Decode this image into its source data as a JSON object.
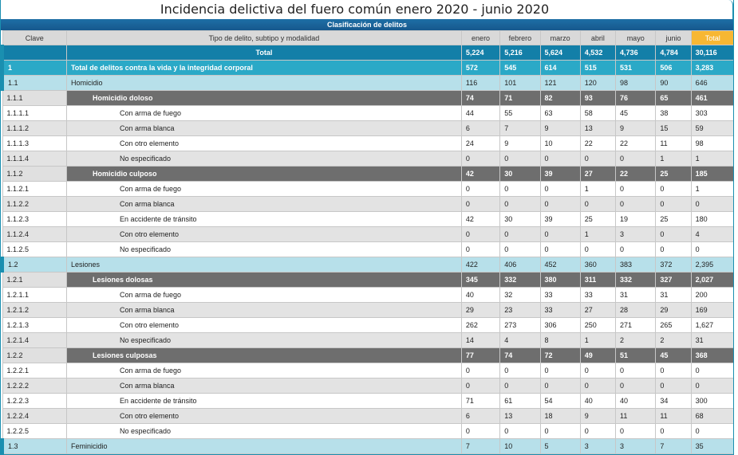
{
  "title": "Incidencia delictiva del fuero común enero 2020 - junio 2020",
  "clasificacion": "Clasificación de delitos",
  "headers": {
    "clave": "Clave",
    "tipo": "Tipo de delito, subtipo y modalidad",
    "months": [
      "enero",
      "febrero",
      "marzo",
      "abril",
      "mayo",
      "junio"
    ],
    "total": "Total"
  },
  "rows": [
    {
      "kind": "total",
      "clave": "",
      "label": "Total",
      "values": [
        "5,224",
        "5,216",
        "5,624",
        "4,532",
        "4,736",
        "4,784",
        "30,116"
      ]
    },
    {
      "kind": "cat",
      "clave": "1",
      "label": "Total de delitos contra la vida y la integridad corporal",
      "values": [
        "572",
        "545",
        "614",
        "515",
        "531",
        "506",
        "3,283"
      ]
    },
    {
      "kind": "sub",
      "clave": "1.1",
      "label": "Homicidio",
      "values": [
        "116",
        "101",
        "121",
        "120",
        "98",
        "90",
        "646"
      ]
    },
    {
      "kind": "group",
      "clave": "1.1.1",
      "label": "Homicidio doloso",
      "values": [
        "74",
        "71",
        "82",
        "93",
        "76",
        "65",
        "461"
      ]
    },
    {
      "kind": "leaf",
      "clave": "1.1.1.1",
      "label": "Con arma de fuego",
      "values": [
        "44",
        "55",
        "63",
        "58",
        "45",
        "38",
        "303"
      ]
    },
    {
      "kind": "leaf",
      "clave": "1.1.1.2",
      "label": "Con arma blanca",
      "values": [
        "6",
        "7",
        "9",
        "13",
        "9",
        "15",
        "59"
      ]
    },
    {
      "kind": "leaf",
      "clave": "1.1.1.3",
      "label": "Con otro elemento",
      "values": [
        "24",
        "9",
        "10",
        "22",
        "22",
        "11",
        "98"
      ]
    },
    {
      "kind": "leaf",
      "clave": "1.1.1.4",
      "label": "No especificado",
      "values": [
        "0",
        "0",
        "0",
        "0",
        "0",
        "1",
        "1"
      ]
    },
    {
      "kind": "group",
      "clave": "1.1.2",
      "label": "Homicidio culposo",
      "values": [
        "42",
        "30",
        "39",
        "27",
        "22",
        "25",
        "185"
      ]
    },
    {
      "kind": "leaf",
      "clave": "1.1.2.1",
      "label": "Con arma de fuego",
      "values": [
        "0",
        "0",
        "0",
        "1",
        "0",
        "0",
        "1"
      ]
    },
    {
      "kind": "leaf",
      "clave": "1.1.2.2",
      "label": "Con arma blanca",
      "values": [
        "0",
        "0",
        "0",
        "0",
        "0",
        "0",
        "0"
      ]
    },
    {
      "kind": "leaf",
      "clave": "1.1.2.3",
      "label": "En accidente de tránsito",
      "values": [
        "42",
        "30",
        "39",
        "25",
        "19",
        "25",
        "180"
      ]
    },
    {
      "kind": "leaf",
      "clave": "1.1.2.4",
      "label": "Con otro elemento",
      "values": [
        "0",
        "0",
        "0",
        "1",
        "3",
        "0",
        "4"
      ]
    },
    {
      "kind": "leaf",
      "clave": "1.1.2.5",
      "label": "No especificado",
      "values": [
        "0",
        "0",
        "0",
        "0",
        "0",
        "0",
        "0"
      ]
    },
    {
      "kind": "sub",
      "clave": "1.2",
      "label": "Lesiones",
      "values": [
        "422",
        "406",
        "452",
        "360",
        "383",
        "372",
        "2,395"
      ]
    },
    {
      "kind": "group",
      "clave": "1.2.1",
      "label": "Lesiones dolosas",
      "values": [
        "345",
        "332",
        "380",
        "311",
        "332",
        "327",
        "2,027"
      ]
    },
    {
      "kind": "leaf",
      "clave": "1.2.1.1",
      "label": "Con arma de fuego",
      "values": [
        "40",
        "32",
        "33",
        "33",
        "31",
        "31",
        "200"
      ]
    },
    {
      "kind": "leaf",
      "clave": "1.2.1.2",
      "label": "Con arma blanca",
      "values": [
        "29",
        "23",
        "33",
        "27",
        "28",
        "29",
        "169"
      ]
    },
    {
      "kind": "leaf",
      "clave": "1.2.1.3",
      "label": "Con otro elemento",
      "values": [
        "262",
        "273",
        "306",
        "250",
        "271",
        "265",
        "1,627"
      ]
    },
    {
      "kind": "leaf",
      "clave": "1.2.1.4",
      "label": "No especificado",
      "values": [
        "14",
        "4",
        "8",
        "1",
        "2",
        "2",
        "31"
      ]
    },
    {
      "kind": "group",
      "clave": "1.2.2",
      "label": "Lesiones culposas",
      "values": [
        "77",
        "74",
        "72",
        "49",
        "51",
        "45",
        "368"
      ]
    },
    {
      "kind": "leaf",
      "clave": "1.2.2.1",
      "label": "Con arma de fuego",
      "values": [
        "0",
        "0",
        "0",
        "0",
        "0",
        "0",
        "0"
      ]
    },
    {
      "kind": "leaf",
      "clave": "1.2.2.2",
      "label": "Con arma blanca",
      "values": [
        "0",
        "0",
        "0",
        "0",
        "0",
        "0",
        "0"
      ]
    },
    {
      "kind": "leaf",
      "clave": "1.2.2.3",
      "label": "En accidente de tránsito",
      "values": [
        "71",
        "61",
        "54",
        "40",
        "40",
        "34",
        "300"
      ]
    },
    {
      "kind": "leaf",
      "clave": "1.2.2.4",
      "label": "Con otro elemento",
      "values": [
        "6",
        "13",
        "18",
        "9",
        "11",
        "11",
        "68"
      ]
    },
    {
      "kind": "leaf",
      "clave": "1.2.2.5",
      "label": "No especificado",
      "values": [
        "0",
        "0",
        "0",
        "0",
        "0",
        "0",
        "0"
      ]
    },
    {
      "kind": "sub",
      "clave": "1.3",
      "label": "Feminicidio",
      "values": [
        "7",
        "10",
        "5",
        "3",
        "3",
        "7",
        "35"
      ]
    }
  ]
}
